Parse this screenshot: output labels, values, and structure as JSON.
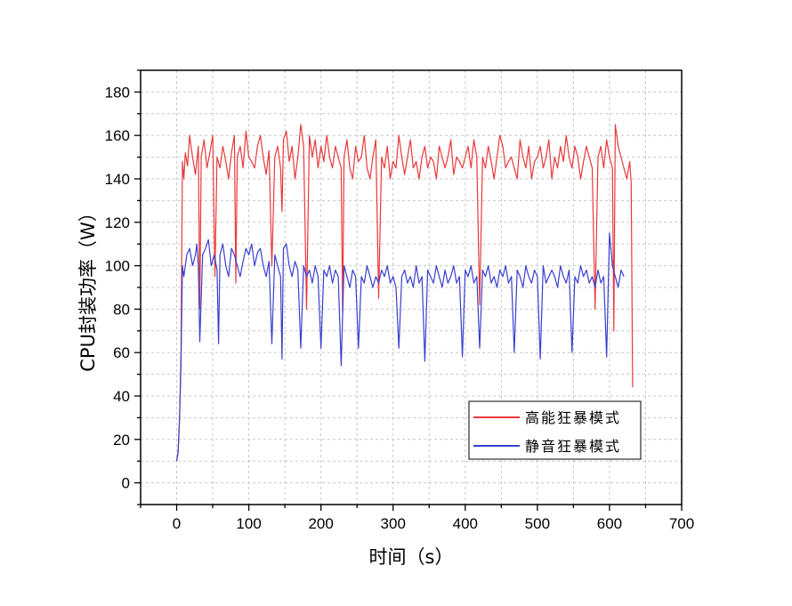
{
  "chart_data": {
    "type": "line",
    "xlabel": "时间（s）",
    "ylabel": "CPU封装功率（W）",
    "xlim": [
      -50,
      700
    ],
    "ylim": [
      -10,
      190
    ],
    "x_ticks": [
      0,
      100,
      200,
      300,
      400,
      500,
      600,
      700
    ],
    "y_ticks": [
      0,
      20,
      40,
      60,
      80,
      100,
      120,
      140,
      160,
      180
    ],
    "grid": true,
    "legend_position": "bottom-right",
    "series": [
      {
        "name": "高能狂暴模式",
        "color": "#e8393c",
        "x": [
          0,
          2,
          4,
          6,
          8,
          10,
          12,
          15,
          18,
          22,
          26,
          30,
          32,
          34,
          38,
          42,
          46,
          50,
          53,
          56,
          60,
          64,
          68,
          72,
          76,
          80,
          82,
          84,
          88,
          92,
          96,
          100,
          104,
          108,
          112,
          116,
          120,
          124,
          128,
          132,
          136,
          140,
          144,
          146,
          148,
          152,
          156,
          160,
          164,
          168,
          172,
          176,
          180,
          184,
          188,
          192,
          196,
          200,
          204,
          208,
          212,
          216,
          220,
          224,
          228,
          230,
          232,
          236,
          240,
          244,
          248,
          252,
          256,
          260,
          264,
          268,
          272,
          276,
          280,
          284,
          288,
          292,
          296,
          300,
          304,
          308,
          312,
          316,
          320,
          324,
          328,
          332,
          336,
          340,
          344,
          348,
          352,
          356,
          360,
          364,
          368,
          372,
          376,
          380,
          384,
          388,
          392,
          396,
          400,
          404,
          408,
          412,
          416,
          420,
          424,
          428,
          432,
          436,
          440,
          444,
          448,
          452,
          456,
          460,
          464,
          468,
          472,
          476,
          480,
          484,
          488,
          492,
          496,
          500,
          504,
          508,
          512,
          516,
          520,
          524,
          528,
          532,
          536,
          540,
          544,
          548,
          552,
          556,
          560,
          564,
          568,
          572,
          576,
          580,
          584,
          588,
          592,
          596,
          600,
          604,
          606,
          608,
          612,
          616,
          620,
          624,
          628,
          630,
          632
        ],
        "values": [
          10,
          15,
          30,
          60,
          148,
          140,
          152,
          146,
          160,
          150,
          142,
          155,
          80,
          150,
          158,
          145,
          152,
          160,
          95,
          150,
          145,
          155,
          148,
          140,
          152,
          160,
          92,
          150,
          155,
          145,
          162,
          150,
          148,
          145,
          155,
          160,
          150,
          142,
          153,
          100,
          150,
          155,
          145,
          125,
          158,
          162,
          148,
          155,
          140,
          150,
          165,
          155,
          80,
          160,
          150,
          158,
          145,
          155,
          148,
          160,
          150,
          145,
          155,
          150,
          145,
          78,
          150,
          158,
          145,
          140,
          155,
          148,
          150,
          160,
          145,
          140,
          150,
          158,
          85,
          150,
          145,
          155,
          140,
          148,
          145,
          160,
          150,
          142,
          150,
          158,
          145,
          148,
          140,
          150,
          155,
          145,
          150,
          148,
          140,
          155,
          150,
          145,
          150,
          158,
          142,
          150,
          148,
          145,
          150,
          155,
          145,
          158,
          150,
          82,
          150,
          145,
          155,
          148,
          140,
          150,
          160,
          155,
          145,
          148,
          150,
          145,
          140,
          158,
          150,
          145,
          155,
          140,
          148,
          150,
          155,
          145,
          150,
          158,
          140,
          150,
          145,
          155,
          148,
          160,
          150,
          145,
          155,
          150,
          140,
          148,
          155,
          150,
          145,
          80,
          150,
          155,
          145,
          158,
          150,
          145,
          70,
          165,
          155,
          150,
          145,
          140,
          148,
          138,
          44
        ]
      },
      {
        "name": "静音狂暴模式",
        "color": "#3a3fcf",
        "x": [
          0,
          2,
          4,
          6,
          8,
          10,
          14,
          18,
          22,
          26,
          28,
          30,
          32,
          36,
          40,
          44,
          48,
          52,
          56,
          58,
          60,
          64,
          68,
          72,
          76,
          80,
          84,
          88,
          92,
          96,
          100,
          104,
          108,
          112,
          116,
          120,
          124,
          128,
          132,
          136,
          140,
          144,
          146,
          148,
          152,
          156,
          160,
          164,
          168,
          172,
          176,
          180,
          184,
          188,
          192,
          196,
          200,
          204,
          208,
          212,
          216,
          220,
          224,
          228,
          232,
          236,
          240,
          244,
          248,
          252,
          256,
          260,
          264,
          268,
          272,
          276,
          280,
          284,
          288,
          292,
          296,
          300,
          304,
          308,
          312,
          316,
          320,
          324,
          328,
          332,
          336,
          340,
          344,
          348,
          352,
          356,
          360,
          364,
          368,
          372,
          376,
          380,
          384,
          388,
          392,
          396,
          400,
          404,
          408,
          412,
          416,
          420,
          424,
          428,
          432,
          436,
          440,
          444,
          448,
          452,
          456,
          460,
          464,
          468,
          472,
          476,
          480,
          484,
          488,
          492,
          496,
          500,
          504,
          508,
          512,
          516,
          520,
          524,
          528,
          532,
          536,
          540,
          544,
          548,
          552,
          556,
          560,
          564,
          568,
          572,
          576,
          580,
          584,
          588,
          592,
          596,
          600,
          604,
          608,
          612,
          616,
          620
        ],
        "values": [
          10,
          14,
          30,
          55,
          100,
          95,
          105,
          108,
          100,
          105,
          110,
          100,
          65,
          105,
          108,
          112,
          100,
          105,
          98,
          64,
          105,
          110,
          100,
          95,
          108,
          105,
          100,
          95,
          102,
          108,
          105,
          110,
          100,
          106,
          108,
          100,
          95,
          102,
          64,
          105,
          100,
          95,
          57,
          108,
          110,
          100,
          95,
          102,
          98,
          62,
          100,
          95,
          98,
          92,
          100,
          95,
          62,
          98,
          95,
          100,
          92,
          98,
          95,
          54,
          100,
          95,
          90,
          98,
          95,
          62,
          95,
          92,
          100,
          95,
          90,
          95,
          92,
          98,
          95,
          100,
          92,
          95,
          90,
          62,
          95,
          98,
          92,
          95,
          90,
          100,
          92,
          95,
          56,
          98,
          95,
          92,
          100,
          95,
          90,
          98,
          92,
          95,
          100,
          92,
          95,
          58,
          98,
          95,
          100,
          92,
          95,
          62,
          98,
          95,
          100,
          92,
          95,
          90,
          98,
          95,
          100,
          92,
          95,
          60,
          98,
          95,
          90,
          100,
          95,
          92,
          98,
          95,
          57,
          100,
          92,
          95,
          98,
          95,
          90,
          100,
          95,
          92,
          98,
          60,
          95,
          92,
          100,
          95,
          98,
          92,
          95,
          90,
          98,
          92,
          95,
          58,
          115,
          100,
          95,
          90,
          98,
          95
        ]
      }
    ]
  }
}
